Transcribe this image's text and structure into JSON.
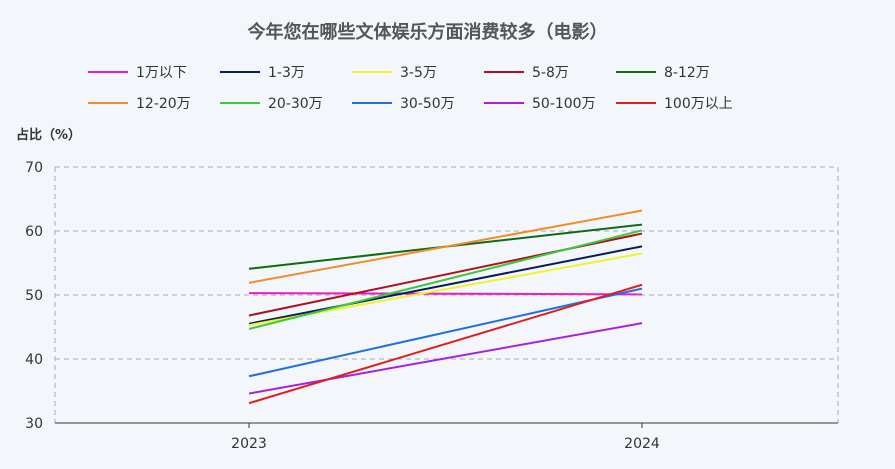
{
  "chart_data": {
    "type": "line",
    "title": "今年您在哪些文体娱乐方面消费较多（电影）",
    "ylabel": "占比（%）",
    "xlabel": "",
    "categories": [
      "2023",
      "2024"
    ],
    "ylim": [
      30,
      70
    ],
    "yticks": [
      30,
      40,
      50,
      60,
      70
    ],
    "grid": true,
    "legend_position": "top",
    "series": [
      {
        "name": "1万以下",
        "color": "#e91ec8",
        "values": [
          50.3,
          50.1
        ]
      },
      {
        "name": "1-3万",
        "color": "#0b1a5a",
        "values": [
          45.5,
          57.6
        ]
      },
      {
        "name": "3-5万",
        "color": "#f2f22a",
        "values": [
          45.3,
          56.5
        ]
      },
      {
        "name": "5-8万",
        "color": "#b0101c",
        "values": [
          46.8,
          59.6
        ]
      },
      {
        "name": "8-12万",
        "color": "#0f6b12",
        "values": [
          54.1,
          61.0
        ]
      },
      {
        "name": "12-20万",
        "color": "#f28c28",
        "values": [
          51.9,
          63.2
        ]
      },
      {
        "name": "20-30万",
        "color": "#3cc93c",
        "values": [
          44.7,
          60.1
        ]
      },
      {
        "name": "30-50万",
        "color": "#1f6fe0",
        "values": [
          37.3,
          51.0
        ]
      },
      {
        "name": "50-100万",
        "color": "#a720e0",
        "values": [
          34.6,
          45.6
        ]
      },
      {
        "name": "100万以上",
        "color": "#e01e1e",
        "values": [
          33.1,
          51.6
        ]
      }
    ]
  }
}
